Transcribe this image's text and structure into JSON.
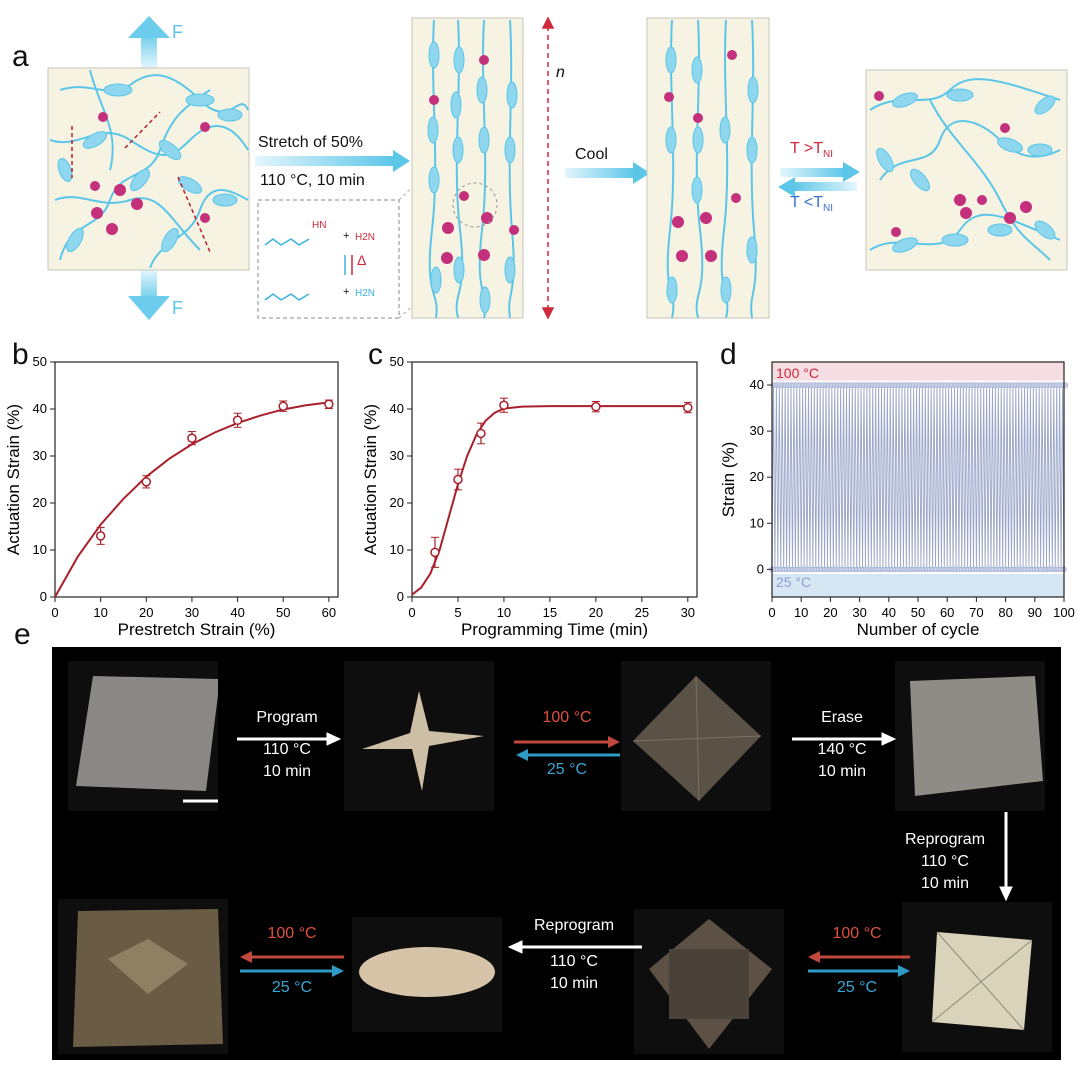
{
  "panel_labels": {
    "a": "a",
    "b": "b",
    "c": "c",
    "d": "d",
    "e": "e"
  },
  "panel_a": {
    "force_label_top": "F",
    "force_label_bottom": "F",
    "stretch_label": "Stretch of  50%",
    "condition_label": "110 °C, 10 min",
    "n_label": "n",
    "cool_label": "Cool",
    "heat_label": "T >T",
    "heat_sub": "NI",
    "cool_back_label": "T <T",
    "cool_back_sub": "NI",
    "reaction": {
      "amine_top": "H2N",
      "nh_top": "HN",
      "delta": "Δ",
      "amine_bottom": "H2N",
      "plus": "+"
    }
  },
  "colors": {
    "curve": "#a8202b",
    "accent_blue": "#5bc6e8",
    "accent_red": "#d0283c",
    "strain_line": "#9aa6c9",
    "panel_bg": "#f6f3e3",
    "hot_band": "#f5dde3",
    "cold_band": "#d6e6f3",
    "hot_text": "#d0283c",
    "cold_text": "#3a9fd0"
  },
  "chart_data": [
    {
      "panel": "b",
      "type": "scatter",
      "xlabel": "Prestretch Strain (%)",
      "ylabel": "Actuation Strain (%)",
      "xlim": [
        0,
        62
      ],
      "ylim": [
        0,
        50
      ],
      "xticks": [
        0,
        10,
        20,
        30,
        40,
        50,
        60
      ],
      "yticks": [
        0,
        10,
        20,
        30,
        40,
        50
      ],
      "x": [
        10,
        20,
        30,
        40,
        50,
        60
      ],
      "y": [
        13,
        24.5,
        33.8,
        37.6,
        40.6,
        41
      ],
      "yerr": [
        1.8,
        1.3,
        1.4,
        1.5,
        1.1,
        0.9
      ],
      "fit_x": [
        0,
        5,
        10,
        15,
        20,
        25,
        30,
        35,
        40,
        45,
        50,
        55,
        60
      ],
      "fit_y": [
        0,
        8.6,
        15.4,
        20.9,
        25.6,
        29.4,
        32.5,
        35.0,
        37.0,
        38.6,
        39.9,
        40.8,
        41.4
      ]
    },
    {
      "panel": "c",
      "type": "scatter",
      "xlabel": "Programming Time (min)",
      "ylabel": "Actuation Strain (%)",
      "xlim": [
        0,
        31
      ],
      "ylim": [
        0,
        50
      ],
      "xticks": [
        0,
        5,
        10,
        15,
        20,
        25,
        30
      ],
      "yticks": [
        0,
        10,
        20,
        30,
        40,
        50
      ],
      "x": [
        2.5,
        5,
        7.5,
        10,
        20,
        30
      ],
      "y": [
        9.5,
        25,
        34.8,
        40.8,
        40.5,
        40.3
      ],
      "yerr": [
        3.2,
        2.2,
        2.2,
        1.5,
        1.1,
        1.1
      ],
      "fit_x": [
        0,
        1,
        2,
        3,
        4,
        5,
        6,
        7,
        8,
        9,
        10,
        12,
        15,
        20,
        25,
        30
      ],
      "fit_y": [
        0.5,
        2,
        5,
        10,
        17,
        24,
        30,
        34.5,
        37.5,
        39.2,
        40.1,
        40.5,
        40.6,
        40.6,
        40.6,
        40.6
      ]
    },
    {
      "panel": "d",
      "type": "line",
      "xlabel": "Number of cycle",
      "ylabel": "Strain (%)",
      "xlim": [
        0,
        100
      ],
      "ylim": [
        -6,
        45
      ],
      "xticks": [
        0,
        10,
        20,
        30,
        40,
        50,
        60,
        70,
        80,
        90,
        100
      ],
      "yticks": [
        0,
        10,
        20,
        30,
        40
      ],
      "hot_label": "100 °C",
      "cold_label": "25 °C",
      "cycles": 100,
      "high_value": 40,
      "low_value": 0
    }
  ],
  "panel_e": {
    "program": "Program",
    "program_temp": "110 °C",
    "program_time": "10 min",
    "heat": "100 °C",
    "cool": "25 °C",
    "erase": "Erase",
    "erase_temp": "140 °C",
    "erase_time": "10 min",
    "reprogram_right": "Reprogram",
    "reprogram_right_temp": "110 °C",
    "reprogram_right_time": "10 min",
    "heat2": "100 °C",
    "cool2": "25 °C",
    "reprogram_bottom": "Reprogram",
    "reprogram_bottom_temp": "110 °C",
    "reprogram_bottom_time": "10 min",
    "heat3": "100 °C",
    "cool3": "25 °C"
  }
}
